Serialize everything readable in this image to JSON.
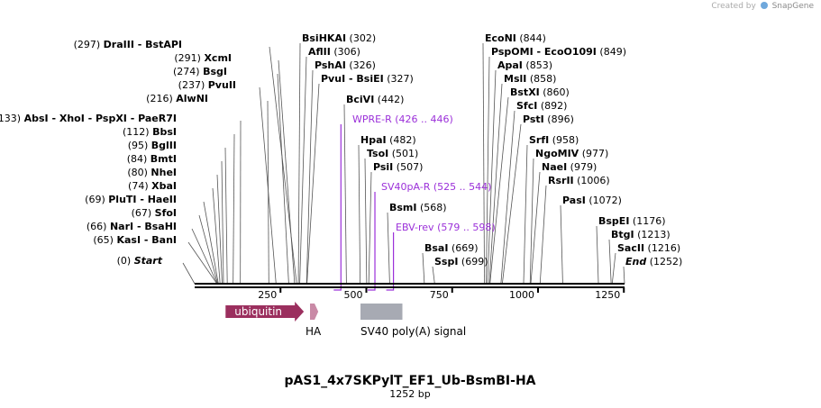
{
  "credit": {
    "prefix": "Created by",
    "brand": "SnapGene",
    "logo_icon": "snapgene-logo-icon"
  },
  "title": "pAS1_4x7SKPylT_EF1_Ub-BsmBI-HA",
  "subtitle": "1252 bp",
  "axis_ticks": [
    "250",
    "500",
    "750",
    "1000",
    "1250"
  ],
  "sites": [
    {
      "kind": "left",
      "label": "(297)  ",
      "bold": "DraIII  - BstAPI",
      "pos": 297
    },
    {
      "kind": "left",
      "label": "(291)  ",
      "bold": "XcmI",
      "pos": 291
    },
    {
      "kind": "left",
      "label": "(274)  ",
      "bold": "BsgI",
      "pos": 274
    },
    {
      "kind": "left",
      "label": "(237)  ",
      "bold": "PvuII",
      "pos": 237
    },
    {
      "kind": "left",
      "label": "(216)  ",
      "bold": "AlwNI",
      "pos": 216
    },
    {
      "kind": "left",
      "label": "(133)  ",
      "bold": "AbsI  - XhoI  - PspXI  - PaeR7I",
      "pos": 133
    },
    {
      "kind": "left",
      "label": "(112)  ",
      "bold": "BbsI",
      "pos": 112
    },
    {
      "kind": "left",
      "label": "(95)  ",
      "bold": "BglII",
      "pos": 95
    },
    {
      "kind": "left",
      "label": "(84)  ",
      "bold": "BmtI",
      "pos": 84
    },
    {
      "kind": "left",
      "label": "(80)  ",
      "bold": "NheI",
      "pos": 80
    },
    {
      "kind": "left",
      "label": "(74)  ",
      "bold": "XbaI",
      "pos": 74
    },
    {
      "kind": "left",
      "label": "(69)  ",
      "bold": "PluTI  - HaeII",
      "pos": 69
    },
    {
      "kind": "left",
      "label": "(67)  ",
      "bold": "SfoI",
      "pos": 67
    },
    {
      "kind": "left",
      "label": "(66)  ",
      "bold": "NarI  - BsaHI",
      "pos": 66
    },
    {
      "kind": "left",
      "label": "(65)  ",
      "bold": "KasI  - BanI",
      "pos": 65
    },
    {
      "kind": "left",
      "label": "(0)  ",
      "bold": "Start",
      "pos": 0,
      "italic": true
    },
    {
      "kind": "right",
      "bold": "BsiHKAI",
      "label": "(302)",
      "pos": 302
    },
    {
      "kind": "right",
      "bold": "AflII",
      "label": "(306)",
      "pos": 306
    },
    {
      "kind": "right",
      "bold": "PshAI",
      "label": "(326)",
      "pos": 326
    },
    {
      "kind": "right",
      "bold": "PvuI  - BsiEI",
      "label": "(327)",
      "pos": 327
    },
    {
      "kind": "right",
      "bold": "BciVI",
      "label": "(442)",
      "pos": 442
    },
    {
      "kind": "primer",
      "text": "WPRE-R",
      "range": "(426 .. 446)",
      "pos": 426
    },
    {
      "kind": "right",
      "bold": "HpaI",
      "label": "(482)",
      "pos": 482
    },
    {
      "kind": "right",
      "bold": "TsoI",
      "label": "(501)",
      "pos": 501
    },
    {
      "kind": "right",
      "bold": "PsiI",
      "label": "(507)",
      "pos": 507
    },
    {
      "kind": "primer",
      "text": "SV40pA-R",
      "range": "(525 .. 544)",
      "pos": 525
    },
    {
      "kind": "right",
      "bold": "BsmI",
      "label": "(568)",
      "pos": 568
    },
    {
      "kind": "primer",
      "text": "EBV-rev",
      "range": "(579 .. 598)",
      "pos": 579
    },
    {
      "kind": "right",
      "bold": "BsaI",
      "label": "(669)",
      "pos": 669
    },
    {
      "kind": "right",
      "bold": "SspI",
      "label": "(699)",
      "pos": 699
    },
    {
      "kind": "right",
      "bold": "EcoNI",
      "label": "(844)",
      "pos": 844
    },
    {
      "kind": "right",
      "bold": "PspOMI  - EcoO109I",
      "label": "(849)",
      "pos": 849
    },
    {
      "kind": "right",
      "bold": "ApaI",
      "label": "(853)",
      "pos": 853
    },
    {
      "kind": "right",
      "bold": "MslI",
      "label": "(858)",
      "pos": 858
    },
    {
      "kind": "right",
      "bold": "BstXI",
      "label": "(860)",
      "pos": 860
    },
    {
      "kind": "right",
      "bold": "SfcI",
      "label": "(892)",
      "pos": 892
    },
    {
      "kind": "right",
      "bold": "PstI",
      "label": "(896)",
      "pos": 896
    },
    {
      "kind": "right",
      "bold": "SrfI",
      "label": "(958)",
      "pos": 958
    },
    {
      "kind": "right",
      "bold": "NgoMIV",
      "label": "(977)",
      "pos": 977
    },
    {
      "kind": "right",
      "bold": "NaeI",
      "label": "(979)",
      "pos": 979
    },
    {
      "kind": "right",
      "bold": "RsrII",
      "label": "(1006)",
      "pos": 1006
    },
    {
      "kind": "right",
      "bold": "PasI",
      "label": "(1072)",
      "pos": 1072
    },
    {
      "kind": "right",
      "bold": "BspEI",
      "label": "(1176)",
      "pos": 1176
    },
    {
      "kind": "right",
      "bold": "BtgI",
      "label": "(1213)",
      "pos": 1213
    },
    {
      "kind": "right",
      "bold": "SacII",
      "label": "(1216)",
      "pos": 1216
    },
    {
      "kind": "right",
      "bold": "End",
      "label": "(1252)",
      "pos": 1252,
      "italic": true
    }
  ],
  "features": [
    {
      "name": "ubiquitin",
      "start": 90,
      "end": 318,
      "color": "#9b2f5e",
      "label_inside": true
    },
    {
      "name": "HA",
      "start": 336,
      "end": 360,
      "color": "#c98aa6",
      "label_inside": false
    },
    {
      "name": "SV40 poly(A) signal",
      "start": 483,
      "end": 605,
      "color": "#a7aab3",
      "label_inside": false
    }
  ],
  "colors": {
    "primer": "#9b30d9",
    "backbone": "#000000",
    "line": "#555555",
    "text": "#000000"
  }
}
